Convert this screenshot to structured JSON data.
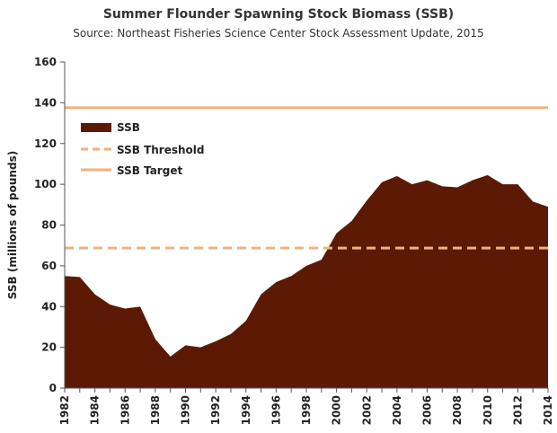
{
  "chart_data": {
    "type": "area",
    "title": "Summer Flounder Spawning Stock Biomass (SSB)",
    "subtitle": "Source: Northeast Fisheries Science Center Stock Assessment Update, 2015",
    "xlabel": "",
    "ylabel": "SSB (millions of pounds)",
    "ylim": [
      0,
      160
    ],
    "xlim": [
      1982,
      2014
    ],
    "y_ticks": [
      0,
      20,
      40,
      60,
      80,
      100,
      120,
      140,
      160
    ],
    "x_ticks": [
      1982,
      1984,
      1986,
      1988,
      1990,
      1992,
      1994,
      1996,
      1998,
      2000,
      2002,
      2004,
      2006,
      2008,
      2010,
      2012,
      2014
    ],
    "grid": false,
    "legend_position": "top-left",
    "series": [
      {
        "name": "SSB",
        "kind": "area",
        "color": "#5c1a05",
        "x": [
          1982,
          1983,
          1984,
          1985,
          1986,
          1987,
          1988,
          1989,
          1990,
          1991,
          1992,
          1993,
          1994,
          1995,
          1996,
          1997,
          1998,
          1999,
          2000,
          2001,
          2002,
          2003,
          2004,
          2005,
          2006,
          2007,
          2008,
          2009,
          2010,
          2011,
          2012,
          2013,
          2014
        ],
        "values": [
          55,
          54.5,
          46,
          41,
          39,
          40,
          24,
          15.5,
          21,
          20,
          23,
          26.5,
          33,
          46,
          52,
          55,
          60,
          63,
          76,
          82,
          92,
          101,
          104,
          100,
          102,
          99,
          98.5,
          102,
          104.5,
          100,
          100,
          91.5,
          89
        ]
      },
      {
        "name": "SSB Threshold",
        "kind": "dashed-line",
        "color": "#f0b27a",
        "value": 68.7
      },
      {
        "name": "SSB Target",
        "kind": "line",
        "color": "#f0b27a",
        "value": 137.6
      }
    ]
  }
}
